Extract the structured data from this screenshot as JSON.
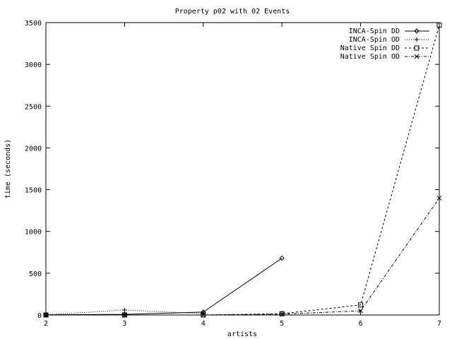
{
  "chart_data": {
    "type": "line",
    "title": "Property p02 with 02 Events",
    "xlabel": "artists",
    "ylabel": "time (seconds)",
    "xlim": [
      2,
      7
    ],
    "ylim": [
      0,
      3500
    ],
    "x_ticks": [
      "2",
      "3",
      "4",
      "5",
      "6",
      "7"
    ],
    "y_ticks": [
      "0",
      "500",
      "1000",
      "1500",
      "2000",
      "2500",
      "3000",
      "3500"
    ],
    "grid": false,
    "legend_position": "top-right",
    "series": [
      {
        "name": "INCA-Spin DD",
        "marker": "diamond",
        "dash": "solid",
        "points": [
          [
            2,
            2
          ],
          [
            3,
            8
          ],
          [
            4,
            35
          ],
          [
            5,
            680
          ]
        ]
      },
      {
        "name": "INCA-Spin OD",
        "marker": "plus",
        "dash": "dotted",
        "points": [
          [
            2,
            2
          ],
          [
            3,
            60
          ],
          [
            4,
            15
          ]
        ]
      },
      {
        "name": "Native Spin DD",
        "marker": "square",
        "dash": "dashed",
        "points": [
          [
            2,
            0
          ],
          [
            3,
            0
          ],
          [
            4,
            0
          ],
          [
            5,
            15
          ],
          [
            6,
            120
          ],
          [
            7,
            3470
          ]
        ]
      },
      {
        "name": "Native Spin OD",
        "marker": "cross",
        "dash": "dashdot",
        "points": [
          [
            2,
            0
          ],
          [
            3,
            0
          ],
          [
            4,
            0
          ],
          [
            5,
            10
          ],
          [
            6,
            50
          ],
          [
            7,
            1400
          ]
        ]
      }
    ]
  }
}
